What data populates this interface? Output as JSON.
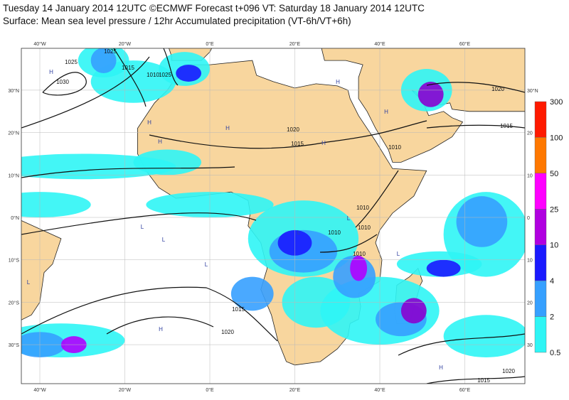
{
  "header": {
    "line1": "Tuesday 14 January 2014 12UTC ©ECMWF Forecast t+096 VT: Saturday 18 January 2014 12UTC",
    "line2": "Surface: Mean sea level pressure / 12hr Accumulated precipitation (VT-6h/VT+6h)"
  },
  "map": {
    "lon_labels_top": [
      "40°W",
      "20°W",
      "0°E",
      "20°E",
      "40°E",
      "60°E"
    ],
    "lon_labels_bottom": [
      "40°W",
      "20°W",
      "0°E",
      "20°E",
      "40°E",
      "60°E"
    ],
    "lat_labels_left": [
      "30°N",
      "20°N",
      "10°N",
      "0°N",
      "10°S",
      "20°S",
      "30°S"
    ],
    "lat_labels_right": [
      "30°N",
      "20",
      "10",
      "0",
      "10",
      "20",
      "30"
    ],
    "isobar_labels": [
      "1025",
      "1025",
      "1015",
      "1030",
      "1010",
      "1025",
      "1020",
      "1015",
      "1015",
      "1020",
      "1010",
      "1010",
      "1010",
      "1010",
      "1015",
      "1020",
      "1020",
      "1015",
      "1010"
    ],
    "pressure_centers": [
      "H",
      "H",
      "H",
      "H",
      "H",
      "H",
      "H",
      "L",
      "L",
      "L",
      "L",
      "L",
      "H",
      "H",
      "L",
      "L"
    ]
  },
  "colorbar": {
    "labels": [
      "300",
      "100",
      "50",
      "25",
      "10",
      "4",
      "2",
      "0.5"
    ]
  }
}
